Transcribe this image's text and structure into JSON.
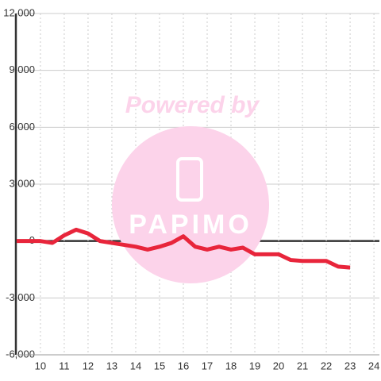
{
  "chart_data": {
    "type": "line",
    "watermark": [
      "Powered by",
      "PAPIMO"
    ],
    "x": [
      9,
      9.5,
      10,
      10.5,
      11,
      11.5,
      12,
      12.5,
      13,
      13.5,
      14,
      14.5,
      15,
      15.5,
      16,
      16.5,
      17,
      17.5,
      18,
      18.5,
      19,
      19.5,
      20,
      20.5,
      21,
      21.5,
      22,
      22.5,
      23
    ],
    "series": [
      {
        "color": "#e8253b",
        "values": [
          0,
          0,
          0,
          -100,
          300,
          600,
          400,
          0,
          -100,
          -200,
          -300,
          -450,
          -300,
          -100,
          250,
          -300,
          -450,
          -300,
          -450,
          -350,
          -700,
          -700,
          -700,
          -1000,
          -1050,
          -1050,
          -1050,
          -1350,
          -1400
        ]
      }
    ],
    "xlim": [
      8.97,
      24.23
    ],
    "xticks": [
      10,
      11,
      12,
      13,
      14,
      15,
      16,
      17,
      18,
      19,
      20,
      21,
      22,
      23,
      24
    ],
    "ylim": [
      -6000,
      12000
    ],
    "yticks": [
      {
        "value": -6000,
        "label": "-6,000"
      },
      {
        "value": -3000,
        "label": "-3,000"
      },
      0,
      {
        "value": 3000,
        "label": "3,000"
      },
      {
        "value": 6000,
        "label": "6,000"
      },
      {
        "value": 9000,
        "label": "9,000"
      },
      {
        "value": 12000,
        "label": "12,000"
      }
    ],
    "grid": true
  }
}
